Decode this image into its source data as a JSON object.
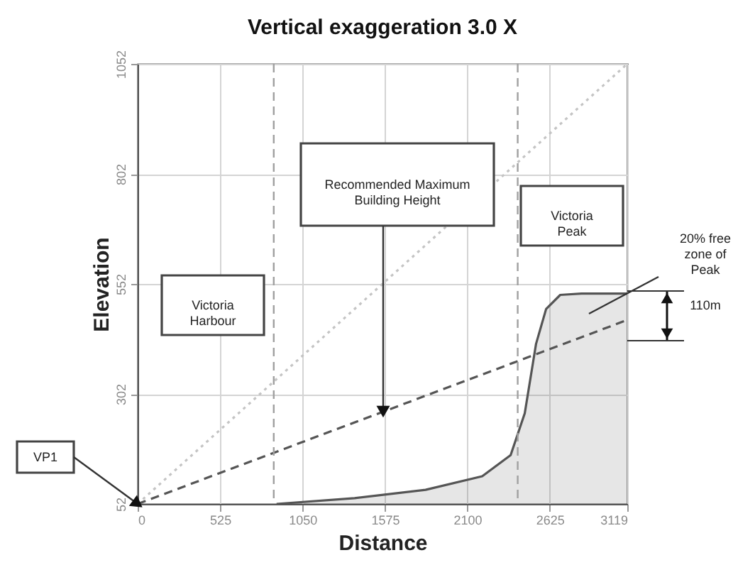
{
  "chart_data": {
    "type": "line",
    "title": "Vertical exaggeration 3.0 X",
    "xlabel": "Distance",
    "ylabel": "Elevation",
    "xlim": [
      0,
      3119
    ],
    "xticks": [
      0,
      525,
      1050,
      1575,
      2100,
      2625,
      3119
    ],
    "ylim": [
      52,
      1052
    ],
    "yticks": [
      52,
      302,
      552,
      802,
      1052
    ],
    "grid": true,
    "marker": "none",
    "series": [
      {
        "x": [
          0,
          3119
        ],
        "values": [
          52,
          1052
        ],
        "color": "#c4c4c4",
        "line_style": "dotted"
      },
      {
        "x": [
          0,
          3119
        ],
        "values": [
          52,
          470
        ],
        "color": "#555555",
        "line_style": "dashed"
      },
      {
        "type": "area",
        "x": [
          885,
          1382,
          1834,
          2195,
          2376,
          2466,
          2538,
          2602,
          2692,
          2827,
          3119
        ],
        "values": [
          52,
          65,
          84,
          115,
          163,
          258,
          416,
          495,
          527,
          530,
          530
        ],
        "color": "#555555"
      }
    ],
    "ref_lines": [
      {
        "axis": "x",
        "value": 867,
        "color": "#a0a0a0",
        "line_style": "dashed"
      },
      {
        "axis": "x",
        "value": 2421,
        "color": "#a0a0a0",
        "line_style": "dashed"
      }
    ],
    "annotations": [
      "Victoria Harbour",
      "Recommended Maximum Building Height",
      "Victoria Peak",
      "20% free zone of Peak",
      "110m",
      {
        "text": "VP1",
        "x": 0,
        "y": 52
      }
    ]
  }
}
